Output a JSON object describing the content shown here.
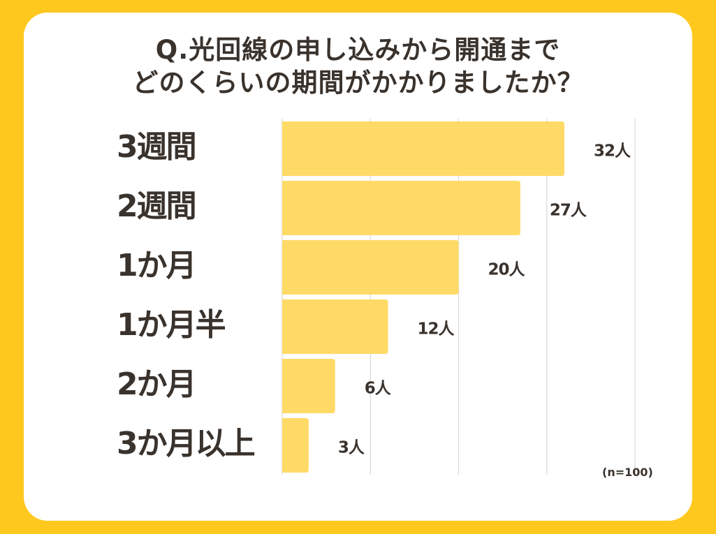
{
  "title_lines": [
    "Q.光回線の申し込みから開通まで",
    "どのくらいの期間がかかりましたか？"
  ],
  "note": "(n=100)",
  "colors": {
    "background": "#FFC81E",
    "card": "#FFFFFF",
    "bar": "#FFDA66",
    "text": "#3A322C",
    "grid": "#D9D9D9"
  },
  "chart_data": {
    "type": "bar",
    "orientation": "horizontal",
    "categories": [
      "3週間",
      "2週間",
      "1か月",
      "1か月半",
      "2か月",
      "3か月以上"
    ],
    "values": [
      32,
      27,
      20,
      12,
      6,
      3
    ],
    "value_labels": [
      "32人",
      "27人",
      "20人",
      "12人",
      "6人",
      "3人"
    ],
    "xlim": [
      0,
      40
    ],
    "grid": true,
    "gridline_values": [
      10,
      20,
      30,
      40
    ]
  }
}
